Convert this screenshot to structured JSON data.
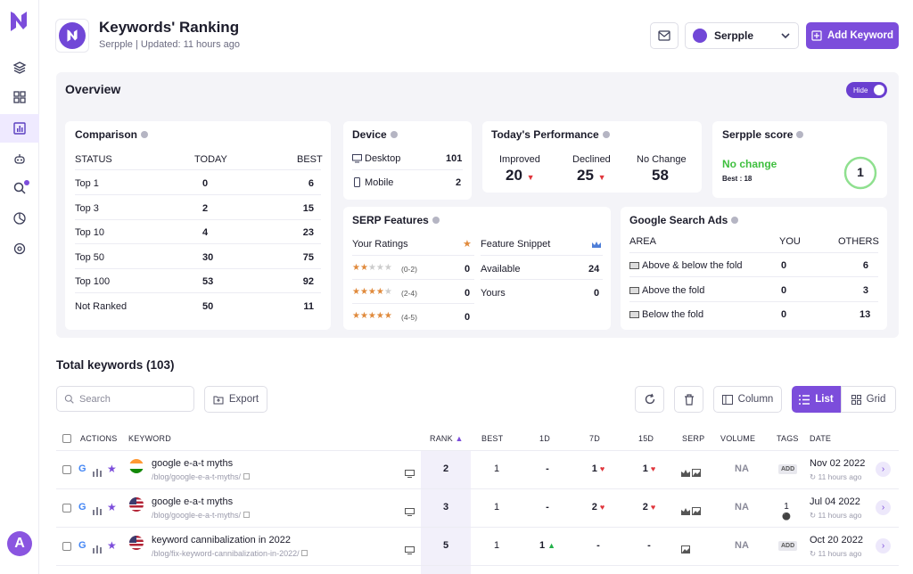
{
  "header": {
    "title": "Keywords' Ranking",
    "subtitle": "Serpple | Updated: 11 hours ago",
    "project_select": "Serpple",
    "add_keyword_label": "Add Keyword"
  },
  "overview": {
    "title": "Overview",
    "hide_label": "Hide",
    "comparison": {
      "title": "Comparison",
      "headers": [
        "STATUS",
        "TODAY",
        "BEST"
      ],
      "rows": [
        {
          "status": "Top 1",
          "today": "0",
          "best": "6"
        },
        {
          "status": "Top 3",
          "today": "2",
          "best": "15"
        },
        {
          "status": "Top 10",
          "today": "4",
          "best": "23"
        },
        {
          "status": "Top 50",
          "today": "30",
          "best": "75"
        },
        {
          "status": "Top 100",
          "today": "53",
          "best": "92"
        },
        {
          "status": "Not Ranked",
          "today": "50",
          "best": "11"
        }
      ]
    },
    "device": {
      "title": "Device",
      "rows": [
        {
          "label": "Desktop",
          "value": "101"
        },
        {
          "label": "Mobile",
          "value": "2"
        }
      ]
    },
    "performance": {
      "title": "Today's Performance",
      "items": [
        {
          "label": "Improved",
          "value": "20"
        },
        {
          "label": "Declined",
          "value": "25"
        },
        {
          "label": "No Change",
          "value": "58"
        }
      ]
    },
    "score": {
      "title": "Serpple score",
      "status": "No change",
      "best": "Best : 18",
      "value": "1"
    },
    "serp_features": {
      "title": "SERP Features",
      "ratings_label": "Your Ratings",
      "ratings": [
        {
          "range": "(0-2)",
          "value": "0"
        },
        {
          "range": "(2-4)",
          "value": "0"
        },
        {
          "range": "(4-5)",
          "value": "0"
        }
      ],
      "snippet_label": "Feature Snippet",
      "snippet_rows": [
        {
          "label": "Available",
          "value": "24"
        },
        {
          "label": "Yours",
          "value": "0"
        }
      ]
    },
    "ads": {
      "title": "Google Search Ads",
      "headers": [
        "AREA",
        "YOU",
        "OTHERS"
      ],
      "rows": [
        {
          "area": "Above & below the fold",
          "you": "0",
          "others": "6"
        },
        {
          "area": "Above the fold",
          "you": "0",
          "others": "3"
        },
        {
          "area": "Below the fold",
          "you": "0",
          "others": "13"
        }
      ]
    }
  },
  "keywords": {
    "total_label": "Total keywords (103)",
    "search_placeholder": "Search",
    "export_label": "Export",
    "column_label": "Column",
    "list_label": "List",
    "grid_label": "Grid",
    "headers": {
      "actions": "ACTIONS",
      "keyword": "KEYWORD",
      "rank": "RANK",
      "best": "BEST",
      "d1": "1D",
      "d7": "7D",
      "d15": "15D",
      "serp": "SERP",
      "volume": "VOLUME",
      "tags": "TAGS",
      "date": "DATE"
    },
    "rows": [
      {
        "keyword": "google e-a-t myths",
        "url": "/blog/google-e-a-t-myths/",
        "rank": "2",
        "best": "1",
        "d1": "-",
        "d7": "1",
        "d15": "1",
        "volume": "NA",
        "tag": "ADD",
        "date": "Nov 02 2022",
        "ago": "11 hours ago"
      },
      {
        "keyword": "google e-a-t myths",
        "url": "/blog/google-e-a-t-myths/",
        "rank": "3",
        "best": "1",
        "d1": "-",
        "d7": "2",
        "d15": "2",
        "volume": "NA",
        "tag": "1",
        "date": "Jul 04 2022",
        "ago": "11 hours ago"
      },
      {
        "keyword": "keyword cannibalization in 2022",
        "url": "/blog/fix-keyword-cannibalization-in-2022/",
        "rank": "5",
        "best": "1",
        "d1": "1",
        "d7": "-",
        "d15": "-",
        "volume": "NA",
        "tag": "ADD",
        "date": "Oct 20 2022",
        "ago": "11 hours ago"
      }
    ]
  },
  "user": {
    "avatar_letter": "A"
  },
  "colors": {
    "accent": "#7c4ddb",
    "decline": "#e0363c",
    "improve": "#23b04a"
  }
}
